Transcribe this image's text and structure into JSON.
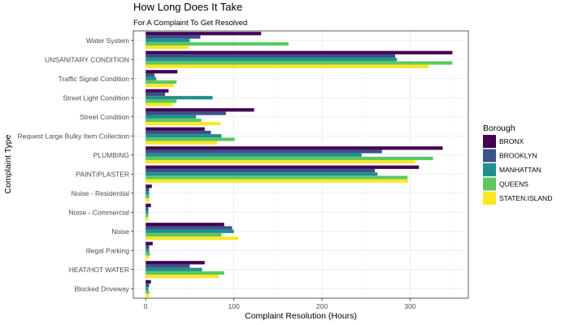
{
  "chart_data": {
    "type": "bar",
    "orientation": "horizontal",
    "title": "How Long Does It Take",
    "subtitle": "For A Complaint To Get Resolved",
    "xlabel": "Complaint Resolution (Hours)",
    "ylabel": "Complaint Type",
    "xlim": [
      -14,
      366
    ],
    "xticks": [
      0,
      100,
      200,
      300
    ],
    "grid": true,
    "legend": {
      "title": "Borough",
      "position": "right"
    },
    "categories": [
      "Water System",
      "UNSANITARY CONDITION",
      "Traffic Signal Condition",
      "Street Light Condition",
      "Street Condition",
      "Request Large Bulky Item Collection",
      "PLUMBING",
      "PAINT/PLASTER",
      "Noise - Residential",
      "Noise - Commercial",
      "Noise",
      "Illegal Parking",
      "HEAT/HOT WATER",
      "Blocked Driveway"
    ],
    "series": [
      {
        "name": "BRONX",
        "color": "#440154",
        "values": [
          131,
          348,
          36,
          26,
          123,
          67,
          337,
          310,
          7,
          6,
          89,
          8,
          67,
          6
        ]
      },
      {
        "name": "BROOKLYN",
        "color": "#3B528B",
        "values": [
          62,
          283,
          10,
          22,
          91,
          74,
          268,
          260,
          4,
          3,
          98,
          4,
          50,
          4
        ]
      },
      {
        "name": "MANHATTAN",
        "color": "#21908C",
        "values": [
          50,
          285,
          12,
          76,
          57,
          86,
          245,
          263,
          4,
          3,
          100,
          4,
          64,
          3
        ]
      },
      {
        "name": "QUEENS",
        "color": "#5DC863",
        "values": [
          162,
          348,
          35,
          35,
          63,
          101,
          326,
          297,
          4,
          3,
          86,
          5,
          89,
          4
        ]
      },
      {
        "name": "STATEN.ISLAND",
        "color": "#FDE725",
        "values": [
          49,
          321,
          32,
          31,
          85,
          81,
          306,
          298,
          4,
          3,
          105,
          4,
          83,
          4
        ]
      }
    ]
  }
}
